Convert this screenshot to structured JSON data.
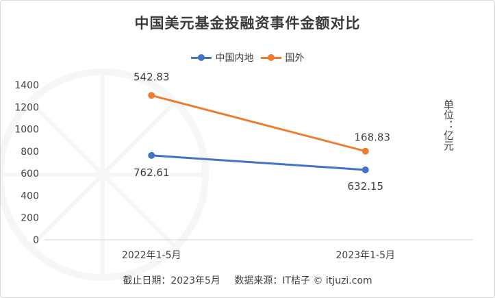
{
  "colors": {
    "series_0": "#4472c4",
    "series_1": "#ed7d31"
  },
  "unit_label": "单位：亿元",
  "footer": {
    "cutoff": "截止日期：2023年5月",
    "source": "数据来源：IT桔子 © itjuzi.com"
  },
  "watermark_icon": "itjuzi-logo-icon",
  "chart_data": {
    "type": "line",
    "title": "中国美元基金投融资事件金额对比",
    "categories": [
      "2022年1-5月",
      "2023年1-5月"
    ],
    "series": [
      {
        "name": "中国内地",
        "values": [
          762.61,
          632.15
        ],
        "labels": [
          "762.61",
          "632.15"
        ]
      },
      {
        "name": "国外",
        "values": [
          1305.44,
          800.98
        ],
        "labels": [
          "542.83",
          "168.83"
        ]
      }
    ],
    "ylim": [
      0,
      1400
    ],
    "yticks": [
      0,
      200,
      400,
      600,
      800,
      1000,
      1200,
      1400
    ],
    "grid": false,
    "legend": "top-center"
  }
}
